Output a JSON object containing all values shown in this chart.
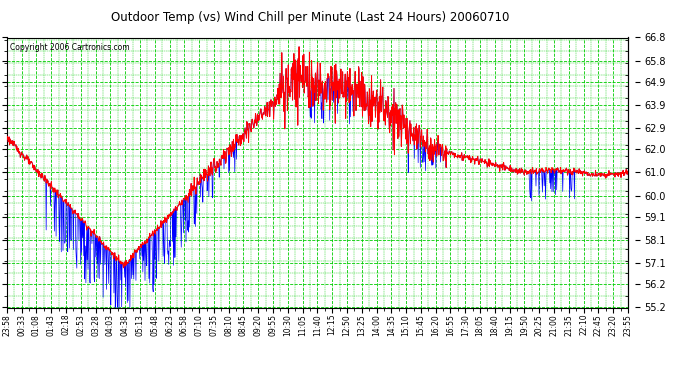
{
  "title": "Outdoor Temp (vs) Wind Chill per Minute (Last 24 Hours) 20060710",
  "copyright": "Copyright 2006 Cartronics.com",
  "background_color": "#ffffff",
  "plot_bg_color": "#ffffff",
  "grid_color": "#00cc00",
  "line_color_temp": "#ff0000",
  "line_color_wind": "#0000ff",
  "ylim": [
    55.2,
    66.8
  ],
  "yticks": [
    55.2,
    56.2,
    57.1,
    58.1,
    59.1,
    60.0,
    61.0,
    62.0,
    62.9,
    63.9,
    64.9,
    65.8,
    66.8
  ],
  "xtick_labels": [
    "23:58",
    "00:33",
    "01:08",
    "01:43",
    "02:18",
    "02:53",
    "03:28",
    "04:03",
    "04:38",
    "05:13",
    "05:48",
    "06:23",
    "06:58",
    "07:10",
    "07:35",
    "08:10",
    "08:45",
    "09:20",
    "09:55",
    "10:30",
    "11:05",
    "11:40",
    "12:15",
    "12:50",
    "13:25",
    "14:00",
    "14:35",
    "15:10",
    "15:45",
    "16:20",
    "16:55",
    "17:30",
    "18:05",
    "18:40",
    "19:15",
    "19:50",
    "20:25",
    "21:00",
    "21:35",
    "22:10",
    "22:45",
    "23:20",
    "23:55"
  ]
}
